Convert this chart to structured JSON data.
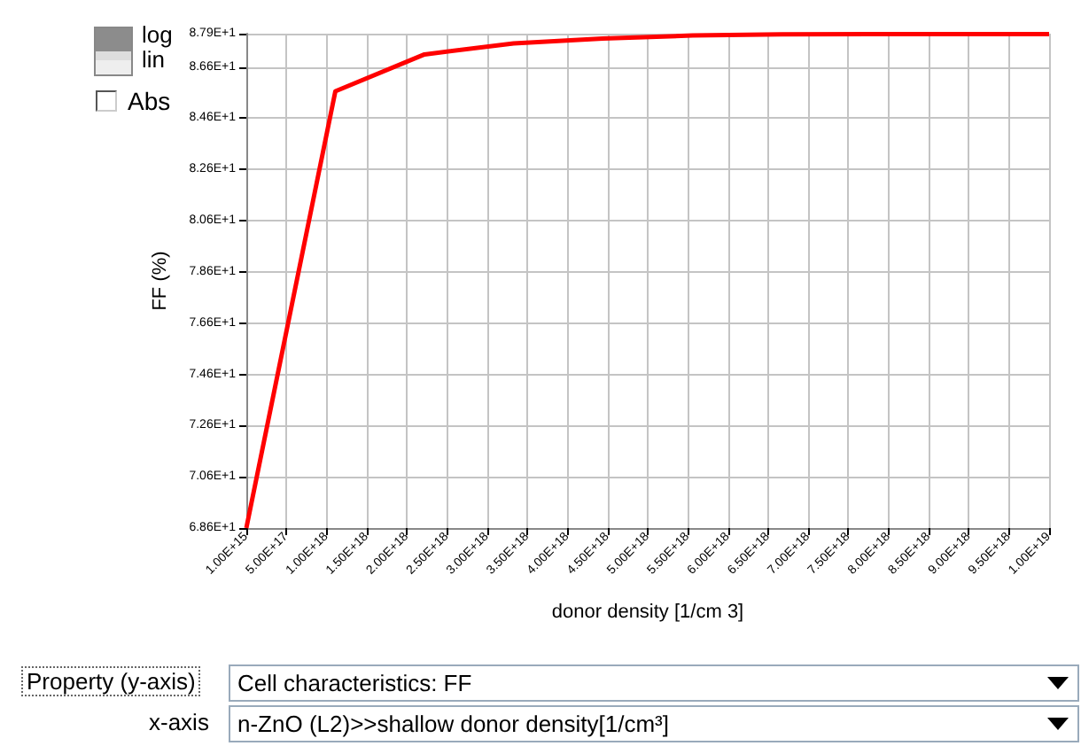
{
  "chart_data": {
    "type": "line",
    "xlabel": "donor density [1/cm 3]",
    "ylabel": "FF (%)",
    "x": [
      1000000000000000.0,
      1.11e+18,
      2.22e+18,
      3.33e+18,
      4.44e+18,
      5.56e+18,
      6.67e+18,
      7.78e+18,
      8.89e+18,
      1e+19
    ],
    "series": [
      {
        "color": "#ff0000",
        "values": [
          68.6,
          85.65,
          87.09,
          87.52,
          87.71,
          87.83,
          87.87,
          87.88,
          87.88,
          87.88
        ]
      }
    ],
    "xlim": [
      1000000000000000.0,
      1e+19
    ],
    "xticks": [
      {
        "value": 1000000000000000.0,
        "label": "1.00E+15"
      },
      {
        "value": 5e+17,
        "label": "5.00E+17"
      },
      {
        "value": 1e+18,
        "label": "1.00E+18"
      },
      {
        "value": 1.5e+18,
        "label": "1.50E+18"
      },
      {
        "value": 2e+18,
        "label": "2.00E+18"
      },
      {
        "value": 2.5e+18,
        "label": "2.50E+18"
      },
      {
        "value": 3e+18,
        "label": "3.00E+18"
      },
      {
        "value": 3.5e+18,
        "label": "3.50E+18"
      },
      {
        "value": 4e+18,
        "label": "4.00E+18"
      },
      {
        "value": 4.5e+18,
        "label": "4.50E+18"
      },
      {
        "value": 5e+18,
        "label": "5.00E+18"
      },
      {
        "value": 5.5e+18,
        "label": "5.50E+18"
      },
      {
        "value": 6e+18,
        "label": "6.00E+18"
      },
      {
        "value": 6.5e+18,
        "label": "6.50E+18"
      },
      {
        "value": 7e+18,
        "label": "7.00E+18"
      },
      {
        "value": 7.5e+18,
        "label": "7.50E+18"
      },
      {
        "value": 8e+18,
        "label": "8.00E+18"
      },
      {
        "value": 8.5e+18,
        "label": "8.50E+18"
      },
      {
        "value": 9e+18,
        "label": "9.00E+18"
      },
      {
        "value": 9.5e+18,
        "label": "9.50E+18"
      },
      {
        "value": 1e+19,
        "label": "1.00E+19"
      }
    ],
    "ylim": [
      68.6,
      87.9
    ],
    "yticks": [
      {
        "value": 68.6,
        "label": "6.86E+1"
      },
      {
        "value": 70.6,
        "label": "7.06E+1"
      },
      {
        "value": 72.6,
        "label": "7.26E+1"
      },
      {
        "value": 74.6,
        "label": "7.46E+1"
      },
      {
        "value": 76.6,
        "label": "7.66E+1"
      },
      {
        "value": 78.6,
        "label": "7.86E+1"
      },
      {
        "value": 80.6,
        "label": "8.06E+1"
      },
      {
        "value": 82.6,
        "label": "8.26E+1"
      },
      {
        "value": 84.6,
        "label": "8.46E+1"
      },
      {
        "value": 86.6,
        "label": "8.66E+1"
      },
      {
        "value": 87.9,
        "label": "8.79E+1"
      }
    ],
    "grid": true,
    "annotations": [
      "log",
      "lin",
      "Abs",
      "Property (y-axis)",
      "Cell characteristics: FF",
      "x-axis",
      "n-ZnO (L2)>>shallow donor density[1/cm³]"
    ]
  }
}
